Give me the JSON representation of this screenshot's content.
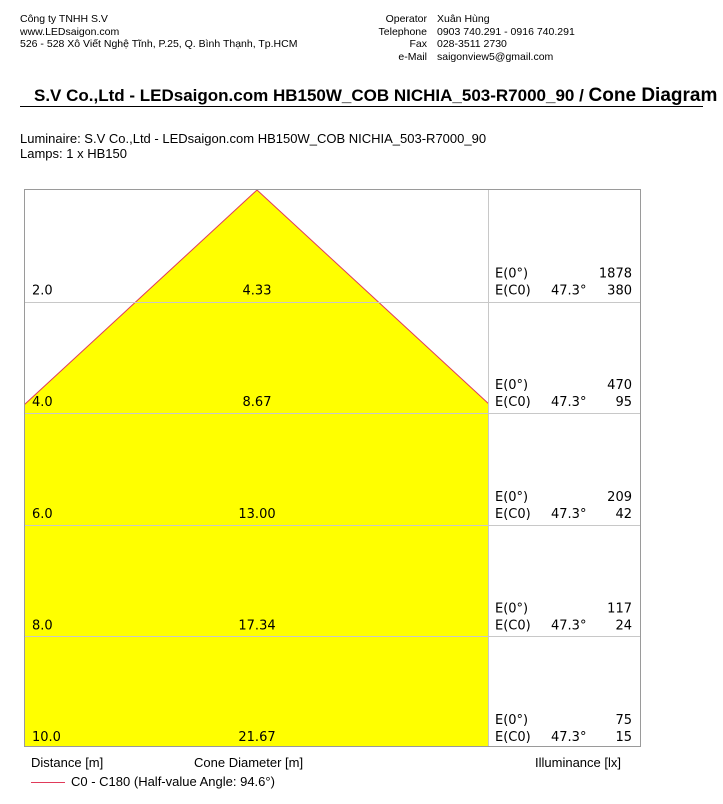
{
  "company": {
    "name": "Công ty TNHH S.V",
    "website": "www.LEDsaigon.com",
    "address": "526 - 528 Xô Viết Nghệ Tĩnh, P.25, Q. Bình Thạnh, Tp.HCM"
  },
  "contact": {
    "operator_label": "Operator",
    "operator": "Xuân Hùng",
    "telephone_label": "Telephone",
    "telephone": "0903 740.291 - 0916 740.291",
    "fax_label": "Fax",
    "fax": "028-3511 2730",
    "email_label": "e-Mail",
    "email": "saigonview5@gmail.com"
  },
  "title": {
    "main": "S.V Co.,Ltd - LEDsaigon.com HB150W_COB NICHIA_503-R7000_90 /",
    "suffix": "Cone Diagram"
  },
  "luminaire_line": "Luminaire: S.V Co.,Ltd - LEDsaigon.com HB150W_COB NICHIA_503-R7000_90",
  "lamps_line": "Lamps: 1 x HB150",
  "colors": {
    "cone_fill": "#ffff00",
    "cone_edge": "#e03a5a",
    "grid": "#c8c8c8",
    "frame": "#9a9a9a"
  },
  "chart_data": {
    "type": "table",
    "half_value_angle_deg": 94.6,
    "max_distance": 10.0,
    "rows": [
      {
        "distance": "2.0",
        "diameter": "4.33",
        "e0_label": "E(0°)",
        "e0": "1878",
        "ec0_label": "E(C0)",
        "angle": "47.3°",
        "ec0": "380"
      },
      {
        "distance": "4.0",
        "diameter": "8.67",
        "e0_label": "E(0°)",
        "e0": "470",
        "ec0_label": "E(C0)",
        "angle": "47.3°",
        "ec0": "95"
      },
      {
        "distance": "6.0",
        "diameter": "13.00",
        "e0_label": "E(0°)",
        "e0": "209",
        "ec0_label": "E(C0)",
        "angle": "47.3°",
        "ec0": "42"
      },
      {
        "distance": "8.0",
        "diameter": "17.34",
        "e0_label": "E(0°)",
        "e0": "117",
        "ec0_label": "E(C0)",
        "angle": "47.3°",
        "ec0": "24"
      },
      {
        "distance": "10.0",
        "diameter": "21.67",
        "e0_label": "E(0°)",
        "e0": "75",
        "ec0_label": "E(C0)",
        "angle": "47.3°",
        "ec0": "15"
      }
    ],
    "xlabels": {
      "distance": "Distance [m]",
      "diameter": "Cone Diameter [m]",
      "illuminance": "Illuminance [lx]"
    },
    "legend": "C0 - C180 (Half-value Angle: 94.6°)"
  }
}
